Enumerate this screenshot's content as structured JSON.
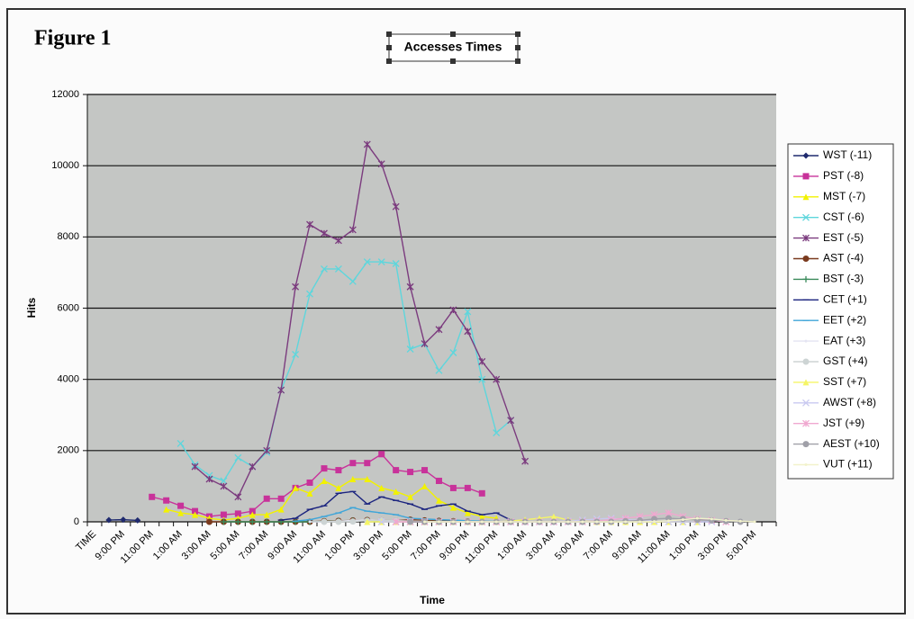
{
  "chart_data": {
    "type": "line",
    "figure_label": "Figure 1",
    "title": "Accesses Times",
    "x_label": "Time",
    "y_label": "Hits",
    "categories": [
      "TIME",
      null,
      "9:00 PM",
      null,
      "11:00 PM",
      null,
      "1:00 AM",
      null,
      "3:00 AM",
      null,
      "5:00 AM",
      null,
      "7:00 AM",
      null,
      "9:00 AM",
      null,
      "11:00 AM",
      null,
      "1:00 PM",
      null,
      "3:00 PM",
      null,
      "5:00 PM",
      null,
      "7:00 PM",
      null,
      "9:00 PM",
      null,
      "11:00 PM",
      null,
      "1:00 AM",
      null,
      "3:00 AM",
      null,
      "5:00 AM",
      null,
      "7:00 AM",
      null,
      "9:00 AM",
      null,
      "11:00 AM",
      null,
      "1:00 PM",
      null,
      "3:00 PM",
      null,
      "5:00 PM",
      null
    ],
    "ylim": [
      0,
      12000
    ],
    "yticks": [
      0,
      2000,
      4000,
      6000,
      8000,
      10000,
      12000
    ],
    "grid": true,
    "legend": "right",
    "series": [
      {
        "name": "WST (-11)",
        "color": "#1f2a6e",
        "marker": "diamond",
        "values": [
          null,
          50,
          60,
          40,
          null,
          null,
          null,
          null,
          null,
          null,
          null,
          null,
          null,
          null,
          null,
          null,
          null,
          null,
          null,
          null,
          null,
          null,
          null,
          null,
          null,
          null,
          null,
          null,
          null,
          null,
          null,
          null,
          null,
          null,
          null,
          null,
          null,
          null,
          null,
          null,
          null,
          null,
          null,
          null,
          null,
          null,
          null,
          null
        ]
      },
      {
        "name": "PST (-8)",
        "color": "#c8329a",
        "marker": "square",
        "values": [
          null,
          null,
          null,
          null,
          700,
          600,
          450,
          300,
          150,
          200,
          230,
          300,
          650,
          650,
          950,
          1100,
          1500,
          1450,
          1650,
          1650,
          1900,
          1450,
          1400,
          1450,
          1150,
          950,
          950,
          800,
          null,
          null,
          null,
          null,
          null,
          null,
          null,
          null,
          null,
          null,
          null,
          null,
          null,
          null,
          null,
          null,
          null,
          null,
          null,
          null
        ]
      },
      {
        "name": "MST (-7)",
        "color": "#f2f200",
        "marker": "triangle",
        "values": [
          null,
          null,
          null,
          null,
          null,
          350,
          250,
          200,
          100,
          50,
          100,
          200,
          200,
          350,
          950,
          800,
          1150,
          950,
          1200,
          1200,
          950,
          850,
          700,
          1000,
          600,
          400,
          250,
          150,
          100,
          null,
          null,
          null,
          null,
          null,
          null,
          null,
          null,
          null,
          null,
          null,
          null,
          null,
          null,
          null,
          null,
          null,
          null,
          null
        ]
      },
      {
        "name": "CST (-6)",
        "color": "#5ed6dc",
        "marker": "x",
        "values": [
          null,
          null,
          null,
          null,
          null,
          null,
          2200,
          1600,
          1300,
          1150,
          1800,
          1550,
          1950,
          3700,
          4700,
          6400,
          7100,
          7100,
          6750,
          7300,
          7300,
          7250,
          4850,
          5000,
          4250,
          4750,
          5900,
          4000,
          2500,
          2850,
          null,
          null,
          null,
          null,
          null,
          null,
          null,
          null,
          null,
          null,
          null,
          null,
          null,
          null,
          null,
          null,
          null,
          null
        ]
      },
      {
        "name": "EST (-5)",
        "color": "#7b3b7e",
        "marker": "star",
        "values": [
          null,
          null,
          null,
          null,
          null,
          null,
          null,
          1550,
          1200,
          1000,
          700,
          1550,
          2000,
          3700,
          6600,
          8350,
          8100,
          7900,
          8200,
          10600,
          10050,
          8850,
          6600,
          5000,
          5400,
          5950,
          5350,
          4500,
          4000,
          2850,
          1700,
          null,
          null,
          null,
          null,
          null,
          null,
          null,
          null,
          null,
          null,
          null,
          null,
          null,
          null,
          null,
          null,
          null
        ]
      },
      {
        "name": "AST (-4)",
        "color": "#7a3a1e",
        "marker": "circle",
        "values": [
          null,
          null,
          null,
          null,
          null,
          null,
          null,
          null,
          0,
          0,
          0,
          0,
          0,
          0,
          0,
          0,
          20,
          30,
          40,
          50,
          40,
          30,
          60,
          40,
          30,
          20,
          10,
          0,
          0,
          0,
          0,
          0,
          null,
          null,
          null,
          null,
          null,
          null,
          null,
          null,
          null,
          null,
          null,
          null,
          null,
          null,
          null,
          null
        ]
      },
      {
        "name": "BST (-3)",
        "color": "#3a8a5a",
        "marker": "plus",
        "values": [
          null,
          null,
          null,
          null,
          null,
          null,
          null,
          null,
          null,
          0,
          0,
          0,
          0,
          0,
          0,
          0,
          10,
          20,
          30,
          40,
          30,
          20,
          20,
          10,
          10,
          0,
          0,
          0,
          0,
          0,
          0,
          0,
          0,
          null,
          null,
          null,
          null,
          null,
          null,
          null,
          null,
          null,
          null,
          null,
          null,
          null,
          null,
          null
        ]
      },
      {
        "name": "CET (+1)",
        "color": "#1a237e",
        "marker": "dash",
        "values": [
          null,
          null,
          null,
          null,
          null,
          null,
          null,
          null,
          null,
          null,
          null,
          null,
          null,
          50,
          100,
          350,
          450,
          800,
          850,
          500,
          700,
          600,
          500,
          350,
          450,
          500,
          300,
          200,
          250,
          50,
          0,
          0,
          0,
          0,
          0,
          0,
          0,
          null,
          null,
          null,
          null,
          null,
          null,
          null,
          null,
          null,
          null,
          null
        ]
      },
      {
        "name": "EET (+2)",
        "color": "#3fa5d8",
        "marker": "dash",
        "values": [
          null,
          null,
          null,
          null,
          null,
          null,
          null,
          null,
          null,
          null,
          null,
          null,
          null,
          null,
          20,
          60,
          150,
          250,
          400,
          300,
          250,
          200,
          100,
          80,
          60,
          50,
          30,
          20,
          10,
          0,
          0,
          0,
          0,
          0,
          0,
          0,
          0,
          0,
          null,
          null,
          null,
          null,
          null,
          null,
          null,
          null,
          null,
          null
        ]
      },
      {
        "name": "EAT (+3)",
        "color": "#e4e4f2",
        "marker": "none",
        "values": [
          null,
          null,
          null,
          null,
          null,
          null,
          null,
          null,
          null,
          null,
          null,
          null,
          null,
          null,
          null,
          0,
          0,
          20,
          40,
          50,
          40,
          30,
          20,
          10,
          0,
          0,
          0,
          0,
          0,
          0,
          0,
          0,
          0,
          0,
          0,
          0,
          0,
          0,
          0,
          null,
          null,
          null,
          null,
          null,
          null,
          null,
          null,
          null
        ]
      },
      {
        "name": "GST (+4)",
        "color": "#cdd4d4",
        "marker": "circle",
        "values": [
          null,
          null,
          null,
          null,
          null,
          null,
          null,
          null,
          null,
          null,
          null,
          null,
          null,
          null,
          null,
          null,
          0,
          0,
          10,
          30,
          40,
          30,
          20,
          10,
          0,
          0,
          0,
          0,
          0,
          0,
          0,
          0,
          0,
          0,
          0,
          0,
          0,
          0,
          0,
          0,
          null,
          null,
          null,
          null,
          null,
          null,
          null,
          null
        ]
      },
      {
        "name": "SST (+7)",
        "color": "#f5f566",
        "marker": "triangle",
        "values": [
          null,
          null,
          null,
          null,
          null,
          null,
          null,
          null,
          null,
          null,
          null,
          null,
          null,
          null,
          null,
          null,
          null,
          null,
          null,
          0,
          0,
          0,
          0,
          0,
          0,
          0,
          0,
          0,
          0,
          20,
          60,
          100,
          150,
          50,
          20,
          0,
          0,
          0,
          0,
          0,
          0,
          0,
          0,
          null,
          null,
          null,
          null,
          null
        ]
      },
      {
        "name": "AWST (+8)",
        "color": "#c9c9f0",
        "marker": "x",
        "values": [
          null,
          null,
          null,
          null,
          null,
          null,
          null,
          null,
          null,
          null,
          null,
          null,
          null,
          null,
          null,
          null,
          null,
          null,
          null,
          null,
          0,
          0,
          0,
          0,
          0,
          0,
          0,
          0,
          0,
          0,
          0,
          0,
          0,
          20,
          50,
          80,
          100,
          60,
          40,
          20,
          0,
          0,
          0,
          0,
          null,
          null,
          null,
          null
        ]
      },
      {
        "name": "JST (+9)",
        "color": "#f0a8d0",
        "marker": "star",
        "values": [
          null,
          null,
          null,
          null,
          null,
          null,
          null,
          null,
          null,
          null,
          null,
          null,
          null,
          null,
          null,
          null,
          null,
          null,
          null,
          null,
          null,
          0,
          0,
          0,
          0,
          0,
          0,
          0,
          0,
          0,
          0,
          0,
          0,
          0,
          0,
          20,
          60,
          100,
          150,
          200,
          250,
          150,
          80,
          40,
          0,
          null,
          null,
          null
        ]
      },
      {
        "name": "AEST (+10)",
        "color": "#a0a0a8",
        "marker": "circle",
        "values": [
          null,
          null,
          null,
          null,
          null,
          null,
          null,
          null,
          null,
          null,
          null,
          null,
          null,
          null,
          null,
          null,
          null,
          null,
          null,
          null,
          null,
          null,
          0,
          0,
          0,
          0,
          0,
          0,
          0,
          0,
          0,
          0,
          0,
          0,
          0,
          0,
          0,
          20,
          40,
          80,
          100,
          80,
          60,
          40,
          20,
          0,
          null,
          null
        ]
      },
      {
        "name": "VUT (+11)",
        "color": "#f2f2cc",
        "marker": "none",
        "values": [
          null,
          null,
          null,
          null,
          null,
          null,
          null,
          null,
          null,
          null,
          null,
          null,
          null,
          null,
          null,
          null,
          null,
          null,
          null,
          null,
          null,
          null,
          null,
          0,
          0,
          0,
          0,
          0,
          0,
          0,
          0,
          0,
          0,
          0,
          0,
          0,
          0,
          0,
          0,
          10,
          30,
          60,
          100,
          80,
          40,
          20,
          0,
          null
        ]
      }
    ]
  }
}
